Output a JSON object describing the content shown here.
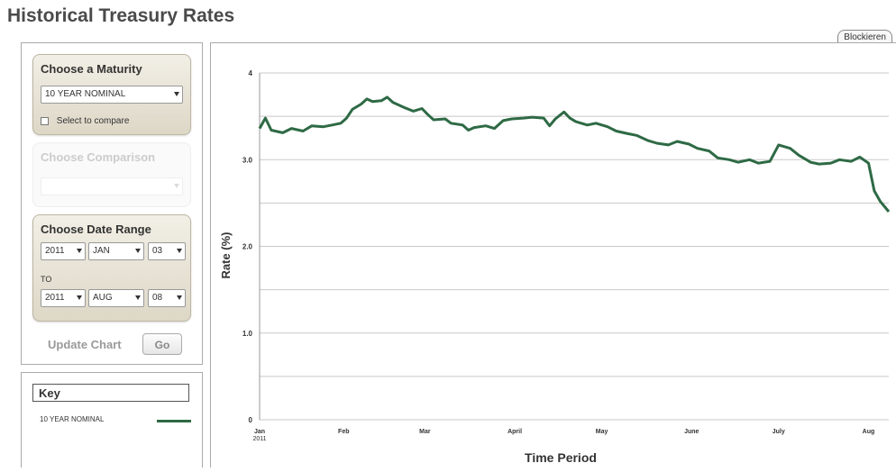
{
  "page": {
    "title": "Historical Treasury Rates",
    "block_tab": "Blockieren"
  },
  "sidebar": {
    "maturity": {
      "title": "Choose a Maturity",
      "selected": "10 YEAR NOMINAL",
      "compare_label": "Select to compare"
    },
    "comparison": {
      "title": "Choose Comparison",
      "selected": ""
    },
    "date_range": {
      "title": "Choose Date Range",
      "from_year": "2011",
      "from_month": "JAN",
      "from_day": "03",
      "to_label": "TO",
      "to_year": "2011",
      "to_month": "AUG",
      "to_day": "08"
    },
    "update_label": "Update Chart",
    "go_label": "Go"
  },
  "key": {
    "title": "Key",
    "series_label": "10 YEAR NOMINAL",
    "series_color": "#2e6a45"
  },
  "chart_data": {
    "type": "line",
    "xlabel": "Time Period",
    "ylabel": "Rate (%)",
    "ylim": [
      0,
      4
    ],
    "grid": true,
    "y_tick_labels": [
      "0",
      "1.0",
      "2.0",
      "3.0",
      "4"
    ],
    "y_tick_values": [
      0,
      1,
      2,
      3,
      4
    ],
    "x_tick_labels": [
      "Jan",
      "Feb",
      "Mar",
      "April",
      "May",
      "June",
      "July",
      "Aug"
    ],
    "x_tick_sublabel": "2011",
    "x_range": [
      "2011-01-03",
      "2011-08-08"
    ],
    "color": "#2e6a45",
    "series": [
      {
        "name": "10 YEAR NOMINAL",
        "points": [
          [
            "2011-01-03",
            3.36
          ],
          [
            "2011-01-05",
            3.48
          ],
          [
            "2011-01-07",
            3.34
          ],
          [
            "2011-01-11",
            3.31
          ],
          [
            "2011-01-14",
            3.36
          ],
          [
            "2011-01-18",
            3.33
          ],
          [
            "2011-01-21",
            3.39
          ],
          [
            "2011-01-25",
            3.38
          ],
          [
            "2011-01-28",
            3.4
          ],
          [
            "2011-01-31",
            3.42
          ],
          [
            "2011-02-02",
            3.48
          ],
          [
            "2011-02-04",
            3.58
          ],
          [
            "2011-02-07",
            3.64
          ],
          [
            "2011-02-09",
            3.7
          ],
          [
            "2011-02-11",
            3.67
          ],
          [
            "2011-02-14",
            3.68
          ],
          [
            "2011-02-16",
            3.72
          ],
          [
            "2011-02-18",
            3.66
          ],
          [
            "2011-02-22",
            3.6
          ],
          [
            "2011-02-25",
            3.56
          ],
          [
            "2011-02-28",
            3.59
          ],
          [
            "2011-03-02",
            3.52
          ],
          [
            "2011-03-04",
            3.46
          ],
          [
            "2011-03-08",
            3.47
          ],
          [
            "2011-03-10",
            3.42
          ],
          [
            "2011-03-14",
            3.4
          ],
          [
            "2011-03-16",
            3.34
          ],
          [
            "2011-03-18",
            3.37
          ],
          [
            "2011-03-22",
            3.39
          ],
          [
            "2011-03-25",
            3.36
          ],
          [
            "2011-03-28",
            3.45
          ],
          [
            "2011-03-31",
            3.47
          ],
          [
            "2011-04-04",
            3.48
          ],
          [
            "2011-04-07",
            3.49
          ],
          [
            "2011-04-11",
            3.48
          ],
          [
            "2011-04-13",
            3.39
          ],
          [
            "2011-04-15",
            3.47
          ],
          [
            "2011-04-18",
            3.55
          ],
          [
            "2011-04-20",
            3.48
          ],
          [
            "2011-04-22",
            3.44
          ],
          [
            "2011-04-26",
            3.4
          ],
          [
            "2011-04-29",
            3.42
          ],
          [
            "2011-05-03",
            3.38
          ],
          [
            "2011-05-06",
            3.33
          ],
          [
            "2011-05-10",
            3.3
          ],
          [
            "2011-05-13",
            3.28
          ],
          [
            "2011-05-17",
            3.22
          ],
          [
            "2011-05-20",
            3.19
          ],
          [
            "2011-05-24",
            3.17
          ],
          [
            "2011-05-27",
            3.21
          ],
          [
            "2011-05-31",
            3.18
          ],
          [
            "2011-06-03",
            3.13
          ],
          [
            "2011-06-07",
            3.1
          ],
          [
            "2011-06-10",
            3.02
          ],
          [
            "2011-06-14",
            3.0
          ],
          [
            "2011-06-17",
            2.97
          ],
          [
            "2011-06-21",
            3.0
          ],
          [
            "2011-06-24",
            2.96
          ],
          [
            "2011-06-28",
            2.98
          ],
          [
            "2011-07-01",
            3.17
          ],
          [
            "2011-07-05",
            3.13
          ],
          [
            "2011-07-08",
            3.05
          ],
          [
            "2011-07-12",
            2.97
          ],
          [
            "2011-07-15",
            2.95
          ],
          [
            "2011-07-19",
            2.96
          ],
          [
            "2011-07-22",
            3.0
          ],
          [
            "2011-07-26",
            2.98
          ],
          [
            "2011-07-29",
            3.03
          ],
          [
            "2011-08-01",
            2.96
          ],
          [
            "2011-08-03",
            2.64
          ],
          [
            "2011-08-05",
            2.52
          ],
          [
            "2011-08-08",
            2.4
          ]
        ]
      }
    ]
  }
}
